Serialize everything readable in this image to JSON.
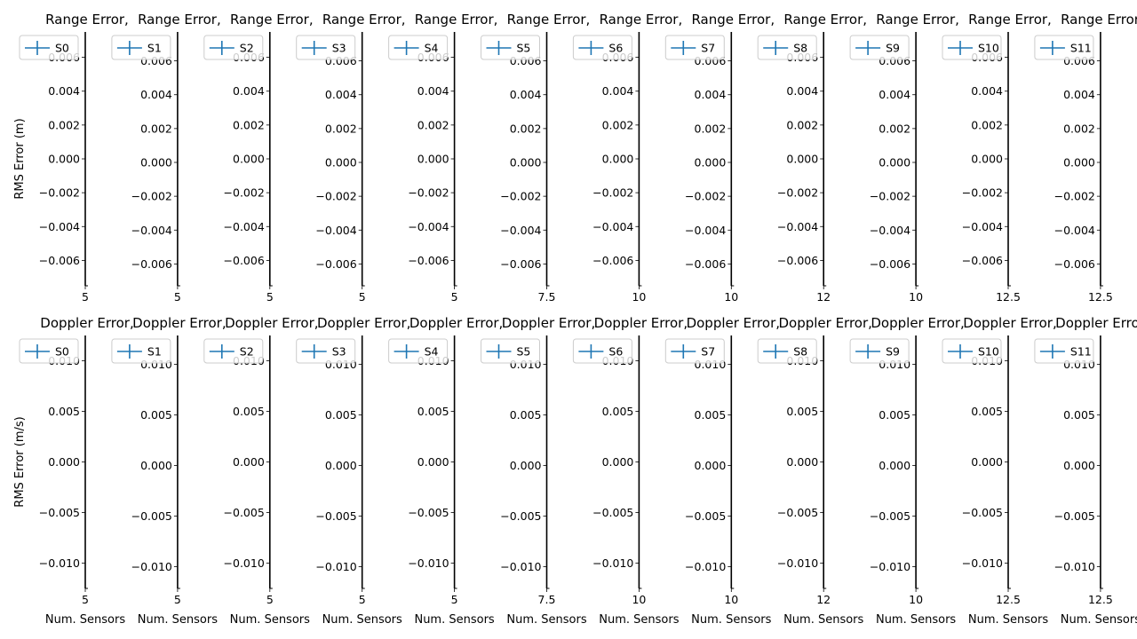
{
  "figure": {
    "rows": 2,
    "cols": 12,
    "line_color": "#1f77b4"
  },
  "chart_data": [
    {
      "type": "line",
      "title": "Range Error,",
      "xlabel": "",
      "ylabel": "RMS Error (m)",
      "legend_position": "upper-left",
      "grid": false,
      "panels": [
        {
          "name": "S0",
          "xticks": [
            "5"
          ],
          "yticks": [
            "0.006",
            "0.004",
            "0.002",
            "0.000",
            "−0.002",
            "−0.004",
            "−0.006"
          ]
        },
        {
          "name": "S1",
          "xticks": [
            "5"
          ],
          "yticks": [
            "0.006",
            "0.004",
            "0.002",
            "0.000",
            "−0.002",
            "−0.004",
            "−0.006"
          ]
        },
        {
          "name": "S2",
          "xticks": [
            "5"
          ],
          "yticks": [
            "0.006",
            "0.004",
            "0.002",
            "0.000",
            "−0.002",
            "−0.004",
            "−0.006"
          ]
        },
        {
          "name": "S3",
          "xticks": [
            "5"
          ],
          "yticks": [
            "0.006",
            "0.004",
            "0.002",
            "0.000",
            "−0.002",
            "−0.004",
            "−0.006"
          ]
        },
        {
          "name": "S4",
          "xticks": [
            "5"
          ],
          "yticks": [
            "0.006",
            "0.004",
            "0.002",
            "0.000",
            "−0.002",
            "−0.004",
            "−0.006"
          ]
        },
        {
          "name": "S5",
          "xticks": [
            "7.5"
          ],
          "yticks": [
            "0.006",
            "0.004",
            "0.002",
            "0.000",
            "−0.002",
            "−0.004",
            "−0.006"
          ]
        },
        {
          "name": "S6",
          "xticks": [
            "10"
          ],
          "yticks": [
            "0.006",
            "0.004",
            "0.002",
            "0.000",
            "−0.002",
            "−0.004",
            "−0.006"
          ]
        },
        {
          "name": "S7",
          "xticks": [
            "10"
          ],
          "yticks": [
            "0.006",
            "0.004",
            "0.002",
            "0.000",
            "−0.002",
            "−0.004",
            "−0.006"
          ]
        },
        {
          "name": "S8",
          "xticks": [
            "12"
          ],
          "yticks": [
            "0.006",
            "0.004",
            "0.002",
            "0.000",
            "−0.002",
            "−0.004",
            "−0.006"
          ]
        },
        {
          "name": "S9",
          "xticks": [
            "10"
          ],
          "yticks": [
            "0.006",
            "0.004",
            "0.002",
            "0.000",
            "−0.002",
            "−0.004",
            "−0.006"
          ]
        },
        {
          "name": "S10",
          "xticks": [
            "12.5"
          ],
          "yticks": [
            "0.006",
            "0.004",
            "0.002",
            "0.000",
            "−0.002",
            "−0.004",
            "−0.006"
          ]
        },
        {
          "name": "S11",
          "xticks": [
            "12.5"
          ],
          "yticks": [
            "0.006",
            "0.004",
            "0.002",
            "0.000",
            "−0.002",
            "−0.004",
            "−0.006"
          ]
        }
      ]
    },
    {
      "type": "line",
      "title": "Doppler Error,",
      "xlabel": "Num. Sensors",
      "ylabel": "RMS Error (m/s)",
      "legend_position": "upper-left",
      "grid": false,
      "panels": [
        {
          "name": "S0",
          "xticks": [
            "5"
          ],
          "yticks": [
            "0.010",
            "0.005",
            "0.000",
            "−0.005",
            "−0.010"
          ]
        },
        {
          "name": "S1",
          "xticks": [
            "5"
          ],
          "yticks": [
            "0.010",
            "0.005",
            "0.000",
            "−0.005",
            "−0.010"
          ]
        },
        {
          "name": "S2",
          "xticks": [
            "5"
          ],
          "yticks": [
            "0.010",
            "0.005",
            "0.000",
            "−0.005",
            "−0.010"
          ]
        },
        {
          "name": "S3",
          "xticks": [
            "5"
          ],
          "yticks": [
            "0.010",
            "0.005",
            "0.000",
            "−0.005",
            "−0.010"
          ]
        },
        {
          "name": "S4",
          "xticks": [
            "5"
          ],
          "yticks": [
            "0.010",
            "0.005",
            "0.000",
            "−0.005",
            "−0.010"
          ]
        },
        {
          "name": "S5",
          "xticks": [
            "7.5"
          ],
          "yticks": [
            "0.010",
            "0.005",
            "0.000",
            "−0.005",
            "−0.010"
          ]
        },
        {
          "name": "S6",
          "xticks": [
            "10"
          ],
          "yticks": [
            "0.010",
            "0.005",
            "0.000",
            "−0.005",
            "−0.010"
          ]
        },
        {
          "name": "S7",
          "xticks": [
            "10"
          ],
          "yticks": [
            "0.010",
            "0.005",
            "0.000",
            "−0.005",
            "−0.010"
          ]
        },
        {
          "name": "S8",
          "xticks": [
            "12"
          ],
          "yticks": [
            "0.010",
            "0.005",
            "0.000",
            "−0.005",
            "−0.010"
          ]
        },
        {
          "name": "S9",
          "xticks": [
            "10"
          ],
          "yticks": [
            "0.010",
            "0.005",
            "0.000",
            "−0.005",
            "−0.010"
          ]
        },
        {
          "name": "S10",
          "xticks": [
            "12.5"
          ],
          "yticks": [
            "0.010",
            "0.005",
            "0.000",
            "−0.005",
            "−0.010"
          ]
        },
        {
          "name": "S11",
          "xticks": [
            "12.5"
          ],
          "yticks": [
            "0.010",
            "0.005",
            "0.000",
            "−0.005",
            "−0.010"
          ]
        }
      ]
    }
  ]
}
